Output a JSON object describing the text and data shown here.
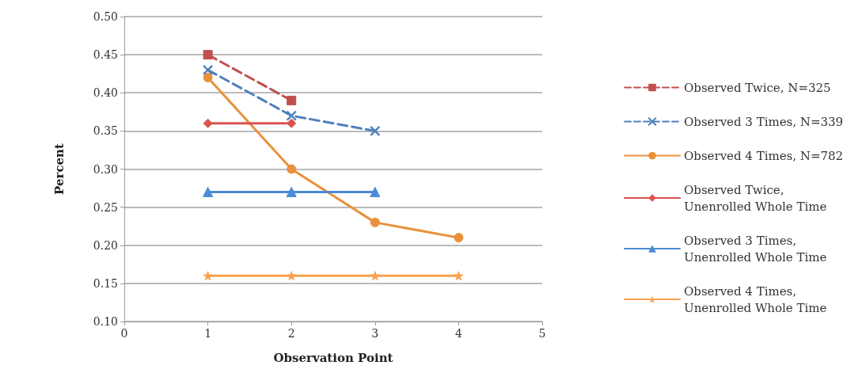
{
  "chart_data": {
    "type": "line",
    "xlabel": "Observation Point",
    "ylabel": "Percent",
    "xlim": [
      0,
      5
    ],
    "xticks": [
      0,
      1,
      2,
      3,
      4,
      5
    ],
    "ylim": [
      0.1,
      0.5
    ],
    "yticks": [
      {
        "value": 0.1,
        "label": "0.10"
      },
      {
        "value": 0.15,
        "label": "0.15"
      },
      {
        "value": 0.2,
        "label": "0.20"
      },
      {
        "value": 0.25,
        "label": "0.25"
      },
      {
        "value": 0.3,
        "label": "0.30"
      },
      {
        "value": 0.35,
        "label": "0.35"
      },
      {
        "value": 0.4,
        "label": "0.40"
      },
      {
        "value": 0.45,
        "label": "0.45"
      },
      {
        "value": 0.5,
        "label": "0.50"
      }
    ],
    "grid": "y",
    "legend": "right",
    "series": [
      {
        "name": "Observed Twice, N=325",
        "color": "#c0504d",
        "marker": "square",
        "line_style": "dashed",
        "x": [
          1,
          2
        ],
        "values": [
          0.45,
          0.39
        ]
      },
      {
        "name": "Observed 3 Times, N=339",
        "color": "#4f81bd",
        "marker": "cross",
        "line_style": "dashed",
        "x": [
          1,
          2,
          3
        ],
        "values": [
          0.43,
          0.37,
          0.35
        ]
      },
      {
        "name": "Observed 4 Times, N=782",
        "color": "#e8913a",
        "marker": "circle",
        "line_style": "solid",
        "x": [
          1,
          2,
          3,
          4
        ],
        "values": [
          0.42,
          0.3,
          0.23,
          0.21
        ]
      },
      {
        "name": "Observed Twice, Unenrolled Whole Time",
        "color": "#d9534f",
        "marker": "diamond",
        "line_style": "solid",
        "x": [
          1,
          2
        ],
        "values": [
          0.36,
          0.36
        ]
      },
      {
        "name": "Observed 3 Times, Unenrolled Whole Time",
        "color": "#4a8bd6",
        "marker": "triangle",
        "line_style": "solid",
        "x": [
          1,
          2,
          3
        ],
        "values": [
          0.27,
          0.27,
          0.27
        ]
      },
      {
        "name": "Observed 4 Times, Unenrolled Whole Time",
        "color": "#f9a24f",
        "marker": "star",
        "line_style": "solid",
        "x": [
          1,
          2,
          3,
          4
        ],
        "values": [
          0.16,
          0.16,
          0.16,
          0.16
        ]
      }
    ]
  }
}
